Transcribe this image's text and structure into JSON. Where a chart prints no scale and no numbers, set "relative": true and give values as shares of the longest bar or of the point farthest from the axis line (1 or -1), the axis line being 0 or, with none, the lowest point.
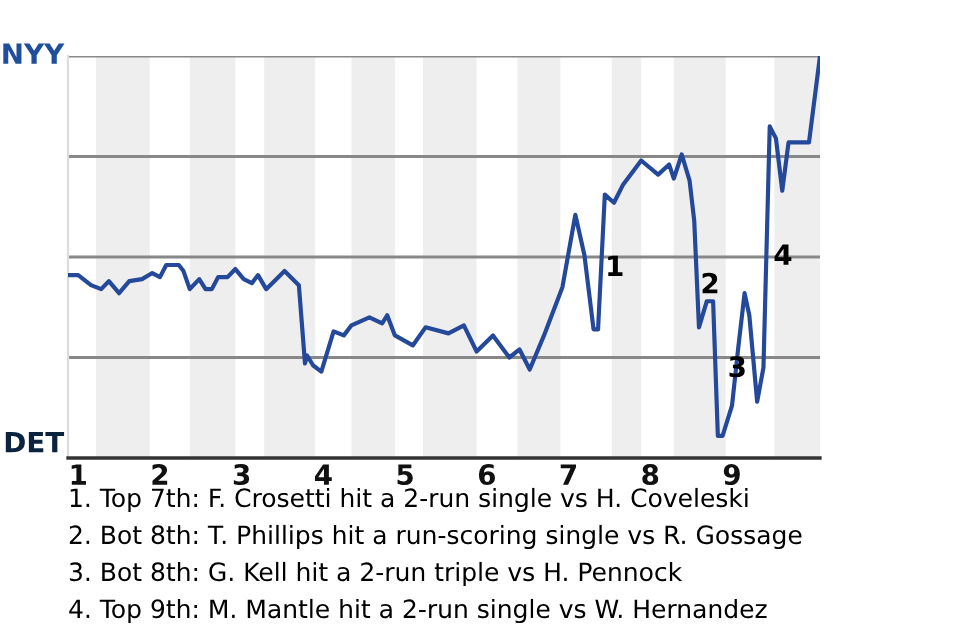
{
  "chart_data": {
    "type": "line",
    "relative": true,
    "x": [
      0.875,
      1.0,
      1.156,
      1.281,
      1.375,
      1.5,
      1.625,
      1.781,
      1.906,
      2.0,
      2.077,
      2.231,
      2.288,
      2.365,
      2.481,
      2.558,
      2.635,
      2.712,
      2.827,
      2.923,
      3.025,
      3.125,
      3.2,
      3.3,
      3.525,
      3.7,
      3.775,
      3.8,
      3.875,
      3.975,
      4.125,
      4.25,
      4.344,
      4.563,
      4.719,
      4.781,
      4.875,
      5.094,
      5.25,
      5.531,
      5.719,
      5.875,
      6.075,
      6.275,
      6.4,
      6.525,
      6.7,
      6.925,
      7.083,
      7.194,
      7.306,
      7.361,
      7.444,
      7.556,
      7.667,
      7.889,
      8.096,
      8.231,
      8.288,
      8.385,
      8.481,
      8.538,
      8.596,
      8.692,
      8.769,
      8.827,
      8.885,
      9.0,
      9.077,
      9.154,
      9.212,
      9.308,
      9.385,
      9.462,
      9.538,
      9.615,
      9.692,
      9.942,
      10.077
    ],
    "series": [
      {
        "color": "#24489a",
        "values": [
          0.455,
          0.455,
          0.43,
          0.42,
          0.44,
          0.41,
          0.44,
          0.445,
          0.46,
          0.45,
          0.48,
          0.48,
          0.465,
          0.42,
          0.445,
          0.42,
          0.42,
          0.45,
          0.45,
          0.47,
          0.445,
          0.435,
          0.455,
          0.42,
          0.465,
          0.43,
          0.235,
          0.255,
          0.23,
          0.215,
          0.315,
          0.305,
          0.33,
          0.35,
          0.335,
          0.355,
          0.305,
          0.28,
          0.325,
          0.31,
          0.33,
          0.265,
          0.305,
          0.25,
          0.27,
          0.22,
          0.305,
          0.425,
          0.605,
          0.505,
          0.32,
          0.32,
          0.655,
          0.635,
          0.68,
          0.74,
          0.705,
          0.73,
          0.695,
          0.755,
          0.69,
          0.59,
          0.325,
          0.39,
          0.39,
          0.055,
          0.055,
          0.13,
          0.275,
          0.41,
          0.355,
          0.14,
          0.225,
          0.825,
          0.795,
          0.665,
          0.785,
          0.785,
          1.0
        ]
      }
    ],
    "xlim": [
      0.875,
      10.077
    ],
    "xticks": [
      1,
      2,
      3,
      4,
      5,
      6,
      7,
      8,
      9
    ],
    "marker": "none",
    "line_style": "solid",
    "ref_lines": [
      {
        "axis": "y",
        "value": 0.25,
        "color": "#888888"
      },
      {
        "axis": "y",
        "value": 0.5,
        "color": "#888888"
      },
      {
        "axis": "y",
        "value": 0.75,
        "color": "#888888"
      },
      {
        "axis": "y",
        "value": 1,
        "color": "#888888"
      }
    ],
    "bands": [
      {
        "axis": "x",
        "from": 1.219,
        "to": 1.875,
        "color": "#eeeeee"
      },
      {
        "axis": "x",
        "from": 2.365,
        "to": 2.923,
        "color": "#eeeeee"
      },
      {
        "axis": "x",
        "from": 3.275,
        "to": 3.9,
        "color": "#eeeeee"
      },
      {
        "axis": "x",
        "from": 4.344,
        "to": 4.875,
        "color": "#eeeeee"
      },
      {
        "axis": "x",
        "from": 5.219,
        "to": 5.875,
        "color": "#eeeeee"
      },
      {
        "axis": "x",
        "from": 6.375,
        "to": 6.9,
        "color": "#eeeeee"
      },
      {
        "axis": "x",
        "from": 7.528,
        "to": 7.889,
        "color": "#eeeeee"
      },
      {
        "axis": "x",
        "from": 8.288,
        "to": 8.923,
        "color": "#eeeeee"
      },
      {
        "axis": "x",
        "from": 9.519,
        "to": 10.077,
        "color": "#eeeeee"
      }
    ],
    "annotations": [
      "NYY",
      "DET",
      {
        "text": "1",
        "x": 7.361,
        "y": 0.32
      },
      {
        "text": "2",
        "x": 8.596,
        "y": 0.325
      },
      {
        "text": "3",
        "x": 8.827,
        "y": 0.055
      },
      {
        "text": "4",
        "x": 9.42,
        "y": 0.5
      },
      "1. Top 7th: F. Crosetti hit a 2-run single vs H. Coveleski",
      "2. Bot 8th: T. Phillips hit a run-scoring single vs R. Gossage",
      "3. Bot 8th: G. Kell hit a 2-run triple vs H. Pennock",
      "4. Top 9th: M. Mantle hit a 2-run single vs W. Hernandez"
    ]
  }
}
